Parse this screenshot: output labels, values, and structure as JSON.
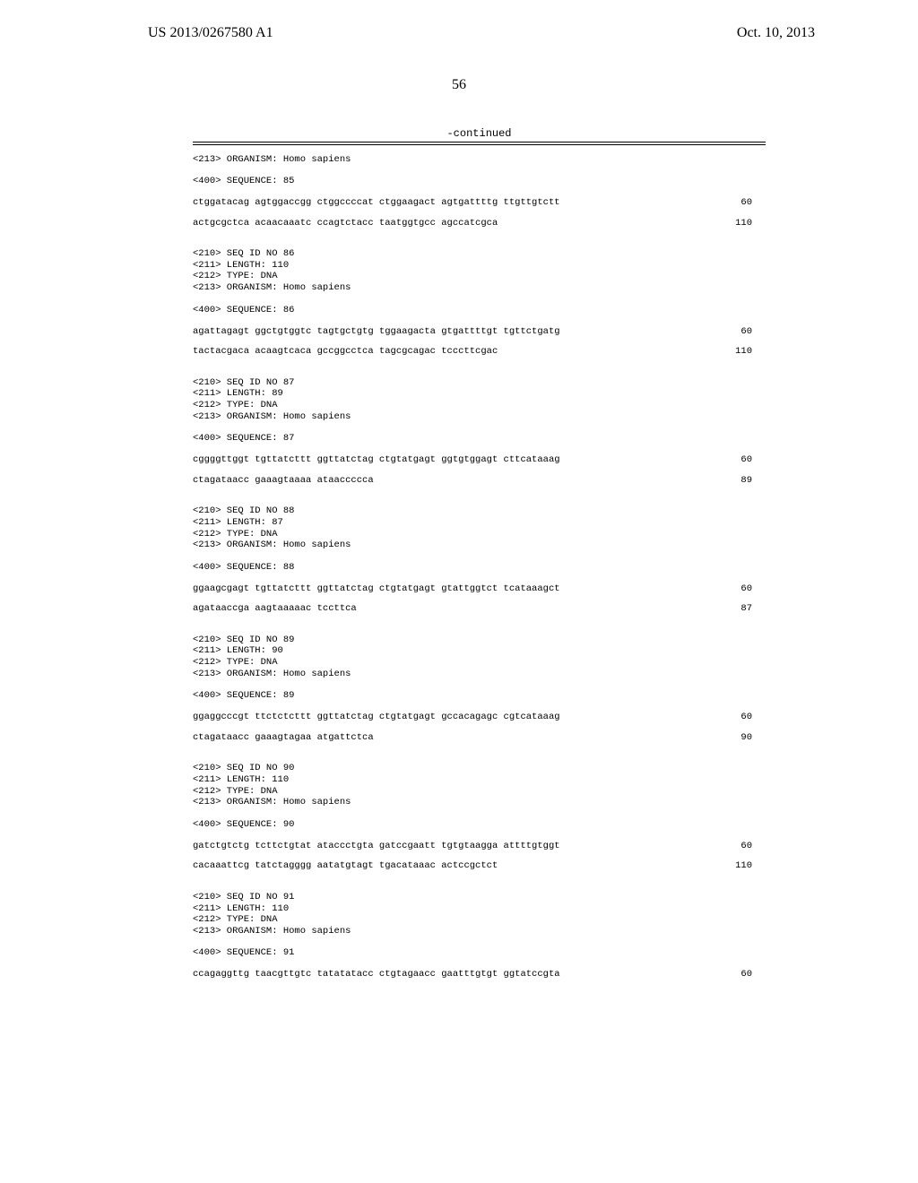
{
  "header": {
    "left": "US 2013/0267580 A1",
    "right": "Oct. 10, 2013"
  },
  "page_number": "56",
  "continued_label": "-continued",
  "blocks": [
    {
      "type": "plain",
      "text": "<213> ORGANISM: Homo sapiens"
    },
    {
      "type": "plain",
      "text": "<400> SEQUENCE: 85"
    },
    {
      "type": "seq",
      "lines": [
        {
          "text": "ctggatacag agtggaccgg ctggccccat ctggaagact agtgattttg ttgttgtctt",
          "num": "60"
        },
        {
          "text": "actgcgctca acaacaaatc ccagtctacc taatggtgcc agccatcgca",
          "num": "110"
        }
      ]
    },
    {
      "type": "header",
      "lines": [
        "<210> SEQ ID NO 86",
        "<211> LENGTH: 110",
        "<212> TYPE: DNA",
        "<213> ORGANISM: Homo sapiens"
      ]
    },
    {
      "type": "plain",
      "text": "<400> SEQUENCE: 86"
    },
    {
      "type": "seq",
      "lines": [
        {
          "text": "agattagagt ggctgtggtc tagtgctgtg tggaagacta gtgattttgt tgttctgatg",
          "num": "60"
        },
        {
          "text": "tactacgaca acaagtcaca gccggcctca tagcgcagac tcccttcgac",
          "num": "110"
        }
      ]
    },
    {
      "type": "header",
      "lines": [
        "<210> SEQ ID NO 87",
        "<211> LENGTH: 89",
        "<212> TYPE: DNA",
        "<213> ORGANISM: Homo sapiens"
      ]
    },
    {
      "type": "plain",
      "text": "<400> SEQUENCE: 87"
    },
    {
      "type": "seq",
      "lines": [
        {
          "text": "cggggttggt tgttatcttt ggttatctag ctgtatgagt ggtgtggagt cttcataaag",
          "num": "60"
        },
        {
          "text": "ctagataacc gaaagtaaaa ataaccccca",
          "num": "89"
        }
      ]
    },
    {
      "type": "header",
      "lines": [
        "<210> SEQ ID NO 88",
        "<211> LENGTH: 87",
        "<212> TYPE: DNA",
        "<213> ORGANISM: Homo sapiens"
      ]
    },
    {
      "type": "plain",
      "text": "<400> SEQUENCE: 88"
    },
    {
      "type": "seq",
      "lines": [
        {
          "text": "ggaagcgagt tgttatcttt ggttatctag ctgtatgagt gtattggtct tcataaagct",
          "num": "60"
        },
        {
          "text": "agataaccga aagtaaaaac tccttca",
          "num": "87"
        }
      ]
    },
    {
      "type": "header",
      "lines": [
        "<210> SEQ ID NO 89",
        "<211> LENGTH: 90",
        "<212> TYPE: DNA",
        "<213> ORGANISM: Homo sapiens"
      ]
    },
    {
      "type": "plain",
      "text": "<400> SEQUENCE: 89"
    },
    {
      "type": "seq",
      "lines": [
        {
          "text": "ggaggcccgt ttctctcttt ggttatctag ctgtatgagt gccacagagc cgtcataaag",
          "num": "60"
        },
        {
          "text": "ctagataacc gaaagtagaa atgattctca",
          "num": "90"
        }
      ]
    },
    {
      "type": "header",
      "lines": [
        "<210> SEQ ID NO 90",
        "<211> LENGTH: 110",
        "<212> TYPE: DNA",
        "<213> ORGANISM: Homo sapiens"
      ]
    },
    {
      "type": "plain",
      "text": "<400> SEQUENCE: 90"
    },
    {
      "type": "seq",
      "lines": [
        {
          "text": "gatctgtctg tcttctgtat ataccctgta gatccgaatt tgtgtaagga attttgtggt",
          "num": "60"
        },
        {
          "text": "cacaaattcg tatctagggg aatatgtagt tgacataaac actccgctct",
          "num": "110"
        }
      ]
    },
    {
      "type": "header",
      "lines": [
        "<210> SEQ ID NO 91",
        "<211> LENGTH: 110",
        "<212> TYPE: DNA",
        "<213> ORGANISM: Homo sapiens"
      ]
    },
    {
      "type": "plain",
      "text": "<400> SEQUENCE: 91"
    },
    {
      "type": "seq",
      "lines": [
        {
          "text": "ccagaggttg taacgttgtc tatatatacc ctgtagaacc gaatttgtgt ggtatccgta",
          "num": "60"
        }
      ]
    }
  ]
}
